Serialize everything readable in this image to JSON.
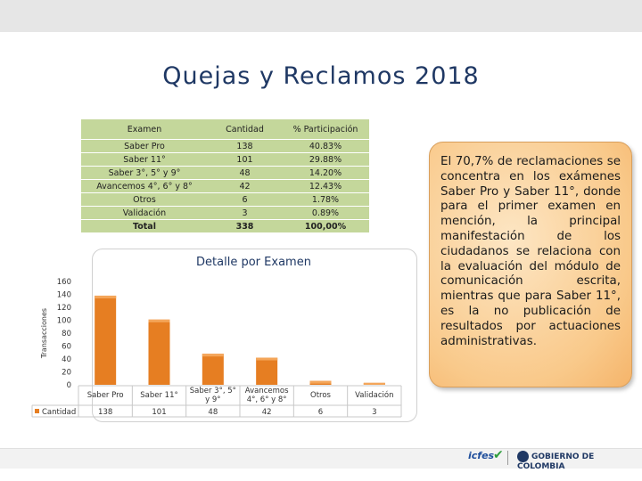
{
  "header": {
    "title": "Quejas y Reclamos 2018"
  },
  "table": {
    "headers": [
      "Examen",
      "Cantidad",
      "% Participación"
    ],
    "rows": [
      [
        "Saber Pro",
        "138",
        "40.83%"
      ],
      [
        "Saber 11°",
        "101",
        "29.88%"
      ],
      [
        "Saber 3°, 5° y 9°",
        "48",
        "14.20%"
      ],
      [
        "Avancemos 4°, 6° y 8°",
        "42",
        "12.43%"
      ],
      [
        "Otros",
        "6",
        "1.78%"
      ],
      [
        "Validación",
        "3",
        "0.89%"
      ]
    ],
    "total": [
      "Total",
      "338",
      "100,00%"
    ]
  },
  "chart_data": {
    "type": "bar",
    "title": "Detalle por Examen",
    "ylabel": "Transacciones",
    "xlabel": "",
    "categories": [
      "Saber Pro",
      "Saber 11°",
      "Saber 3°, 5° y 9°",
      "Avancemos 4°, 6° y 8°",
      "Otros",
      "Validación"
    ],
    "category_lines": [
      [
        "Saber Pro"
      ],
      [
        "Saber 11°"
      ],
      [
        "Saber 3°, 5°",
        "y 9°"
      ],
      [
        "Avancemos",
        "4°, 6° y 8°"
      ],
      [
        "Otros"
      ],
      [
        "Validación"
      ]
    ],
    "series": [
      {
        "name": "Cantidad",
        "values": [
          138,
          101,
          48,
          42,
          6,
          3
        ]
      }
    ],
    "table_values": [
      "138",
      "101",
      "48",
      "42",
      "6",
      "3"
    ],
    "ylim": [
      0,
      160
    ],
    "yticks": [
      "0",
      "20",
      "40",
      "60",
      "80",
      "100",
      "120",
      "140",
      "160"
    ],
    "grid": false,
    "legend": "data-table-bottom",
    "bar_color": "#e67e22"
  },
  "callout": {
    "text": "El 70,7% de reclamaciones se concentra en los exámenes Saber Pro y Saber 11°, donde para el primer examen en mención, la principal manifestación de los ciudadanos se relaciona con la evaluación del módulo de comunicación escrita, mientras que para Saber 11°, es la no publicación de resultados por actuaciones administrativas."
  },
  "footer": {
    "logo_icfes": "icfes",
    "gov_label": "GOBIERNO DE COLOMBIA"
  }
}
